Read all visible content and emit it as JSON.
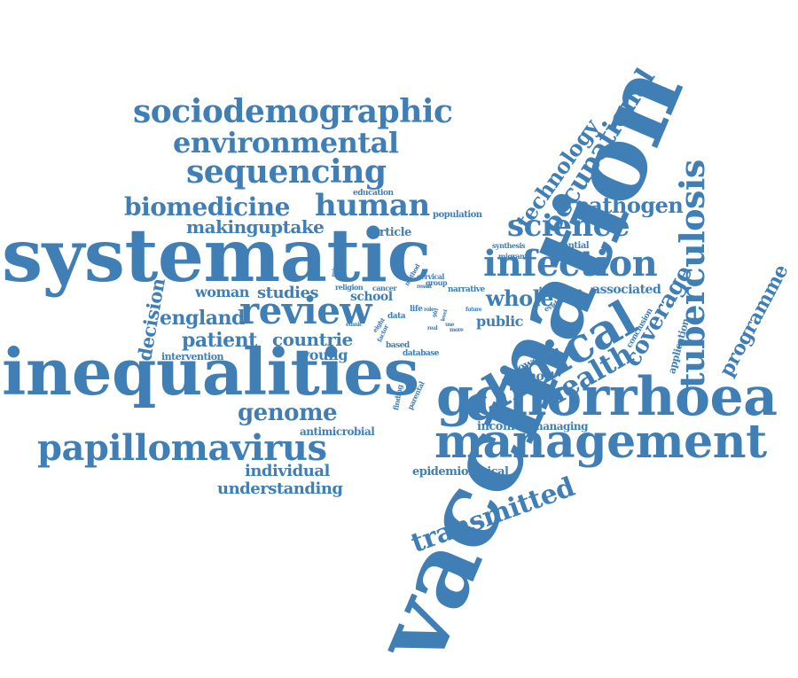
{
  "style": {
    "word_color": "#3f7fb6",
    "background": "#ffffff"
  },
  "words": [
    {
      "text": "vaccination"
    },
    {
      "text": "systematic"
    },
    {
      "text": "inequalities"
    },
    {
      "text": "gonorrhoea"
    },
    {
      "text": "management"
    },
    {
      "text": "review"
    },
    {
      "text": "clinical"
    },
    {
      "text": "infection"
    },
    {
      "text": "sociodemographic"
    },
    {
      "text": "environmental"
    },
    {
      "text": "sequencing"
    },
    {
      "text": "papillomavirus"
    },
    {
      "text": "tuberculosis"
    },
    {
      "text": "occupational"
    },
    {
      "text": "biomedicine"
    },
    {
      "text": "human"
    },
    {
      "text": "science"
    },
    {
      "text": "health"
    },
    {
      "text": "genome"
    },
    {
      "text": "coverage"
    },
    {
      "text": "technology"
    },
    {
      "text": "programme"
    },
    {
      "text": "pathogen"
    },
    {
      "text": "transmitted"
    },
    {
      "text": "patient"
    },
    {
      "text": "countrie"
    },
    {
      "text": "england"
    },
    {
      "text": "whole"
    },
    {
      "text": "decision"
    },
    {
      "text": "makinguptake"
    },
    {
      "text": "woman"
    },
    {
      "text": "studies"
    },
    {
      "text": "understanding"
    },
    {
      "text": "individual"
    },
    {
      "text": "young"
    },
    {
      "text": "public"
    },
    {
      "text": "cohort"
    },
    {
      "text": "income"
    },
    {
      "text": "managing"
    },
    {
      "text": "inform"
    },
    {
      "text": "associated"
    },
    {
      "text": "school"
    },
    {
      "text": "article"
    },
    {
      "text": "epidemiological"
    },
    {
      "text": "antimicrobial"
    },
    {
      "text": "intervention"
    },
    {
      "text": "application"
    },
    {
      "text": "lower"
    },
    {
      "text": "population"
    },
    {
      "text": "potential"
    },
    {
      "text": "narrative"
    },
    {
      "text": "education"
    },
    {
      "text": "database"
    },
    {
      "text": "based"
    },
    {
      "text": "conclusion"
    },
    {
      "text": "evidence"
    },
    {
      "text": "synthesis"
    },
    {
      "text": "migrant"
    },
    {
      "text": "cervical"
    },
    {
      "text": "group"
    },
    {
      "text": "cancer"
    },
    {
      "text": "religion"
    },
    {
      "text": "minority"
    },
    {
      "text": "method"
    },
    {
      "text": "result"
    },
    {
      "text": "data"
    },
    {
      "text": "life"
    },
    {
      "text": "role"
    },
    {
      "text": "girl"
    },
    {
      "text": "future"
    },
    {
      "text": "level"
    },
    {
      "text": "eight"
    },
    {
      "text": "factor"
    },
    {
      "text": "ethnic"
    },
    {
      "text": "finding"
    },
    {
      "text": "parental"
    },
    {
      "text": "real"
    },
    {
      "text": "more"
    },
    {
      "text": "use"
    }
  ]
}
